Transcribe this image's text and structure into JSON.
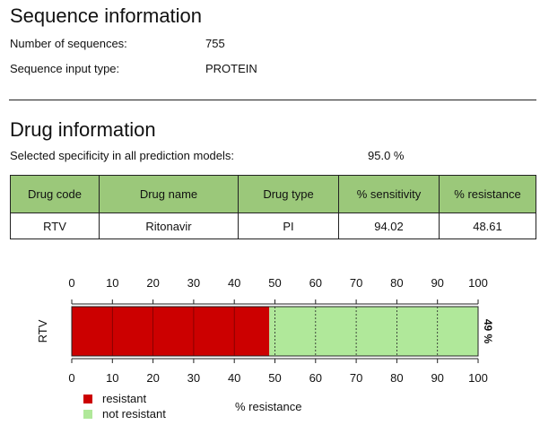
{
  "sequence_info": {
    "title": "Sequence information",
    "rows": [
      {
        "label": "Number of sequences:",
        "value": "755"
      },
      {
        "label": "Sequence input type:",
        "value": "PROTEIN"
      }
    ]
  },
  "drug_info": {
    "title": "Drug information",
    "specificity_label": "Selected specificity in all prediction models:",
    "specificity_value": "95.0 %",
    "table": {
      "headers": [
        "Drug code",
        "Drug name",
        "Drug type",
        "% sensitivity",
        "% resistance"
      ],
      "rows": [
        [
          "RTV",
          "Ritonavir",
          "PI",
          "94.02",
          "48.61"
        ]
      ]
    }
  },
  "chart_data": {
    "type": "bar",
    "orientation": "horizontal",
    "stacked": true,
    "categories": [
      "RTV"
    ],
    "series": [
      {
        "name": "resistant",
        "values": [
          48.61
        ],
        "color": "#cc0000"
      },
      {
        "name": "not resistant",
        "values": [
          51.39
        ],
        "color": "#b0e89a"
      }
    ],
    "xlim": [
      0,
      100
    ],
    "xticks": [
      "0",
      "10",
      "20",
      "30",
      "40",
      "50",
      "60",
      "70",
      "80",
      "90",
      "100"
    ],
    "xlabel": "% resistance",
    "bar_label": "49 %",
    "grid": "vertical dashed",
    "legend_placement": "bottom-left"
  },
  "legend": [
    {
      "label": "resistant",
      "color": "#cc0000"
    },
    {
      "label": "not resistant",
      "color": "#b0e89a"
    }
  ]
}
